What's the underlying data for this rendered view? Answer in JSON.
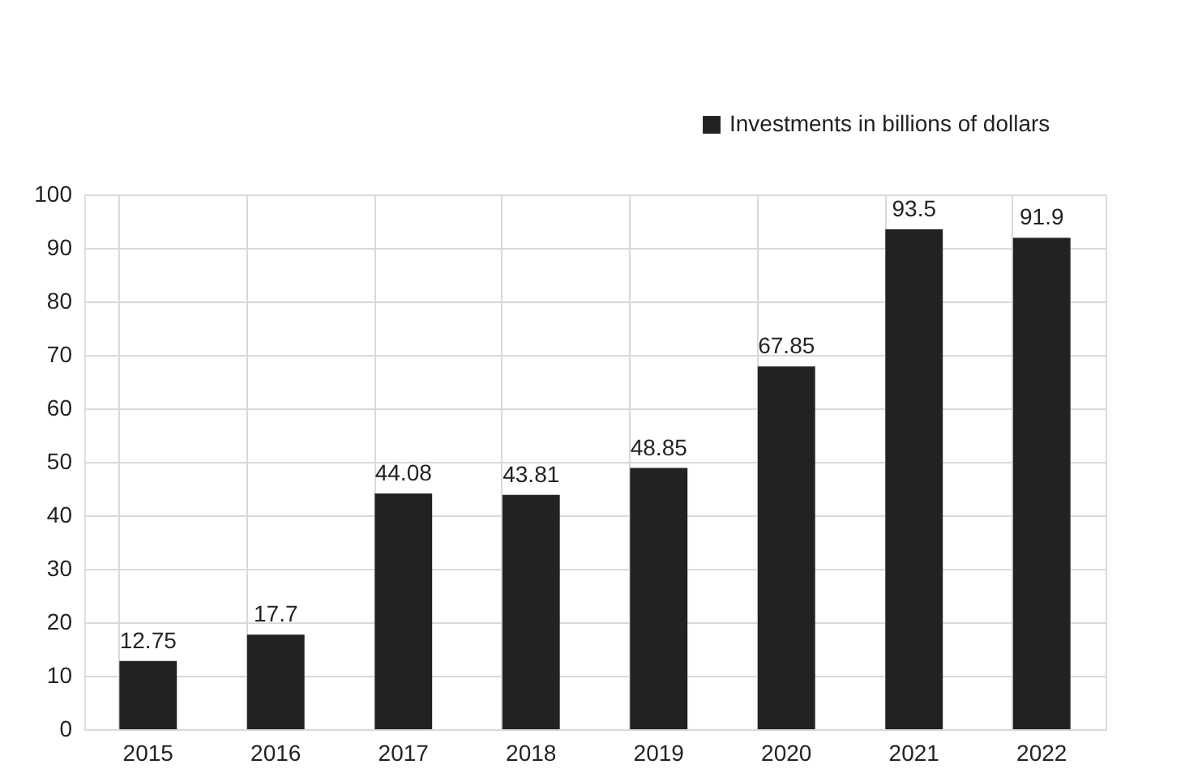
{
  "chart_data": {
    "type": "bar",
    "categories": [
      "2015",
      "2016",
      "2017",
      "2018",
      "2019",
      "2020",
      "2021",
      "2022"
    ],
    "series": [
      {
        "name": "Investments in billions of dollars",
        "color": "#222222",
        "values": [
          12.75,
          17.7,
          44.08,
          43.81,
          48.85,
          67.85,
          93.5,
          91.9
        ]
      }
    ],
    "ylim": [
      0,
      100
    ],
    "yticks": [
      0,
      10,
      20,
      30,
      40,
      50,
      60,
      70,
      80,
      90,
      100
    ],
    "grid": true,
    "legend": "top right",
    "data_labels": true
  }
}
